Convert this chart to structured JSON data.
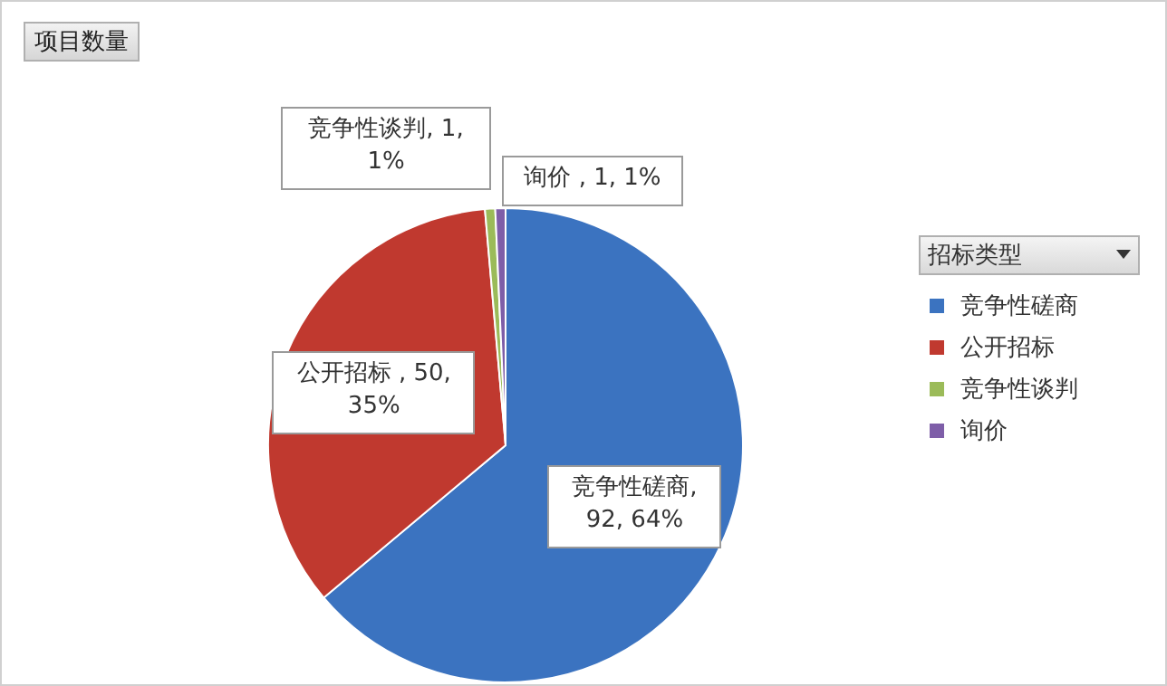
{
  "chart_data": {
    "type": "pie",
    "title": "项目数量",
    "legend_title": "招标类型",
    "categories": [
      "竞争性磋商",
      "公开招标",
      "竞争性谈判",
      "询价"
    ],
    "values": [
      92,
      50,
      1,
      1
    ],
    "colors": [
      "#3b73c0",
      "#c0392f",
      "#9bbb59",
      "#7e5ea8"
    ],
    "value_labels": [
      "竞争性磋商, 92, 64%",
      "公开招标 , 50, 35%",
      "竞争性谈判, 1, 1%",
      "询价 , 1, 1%"
    ],
    "legend": "right"
  }
}
